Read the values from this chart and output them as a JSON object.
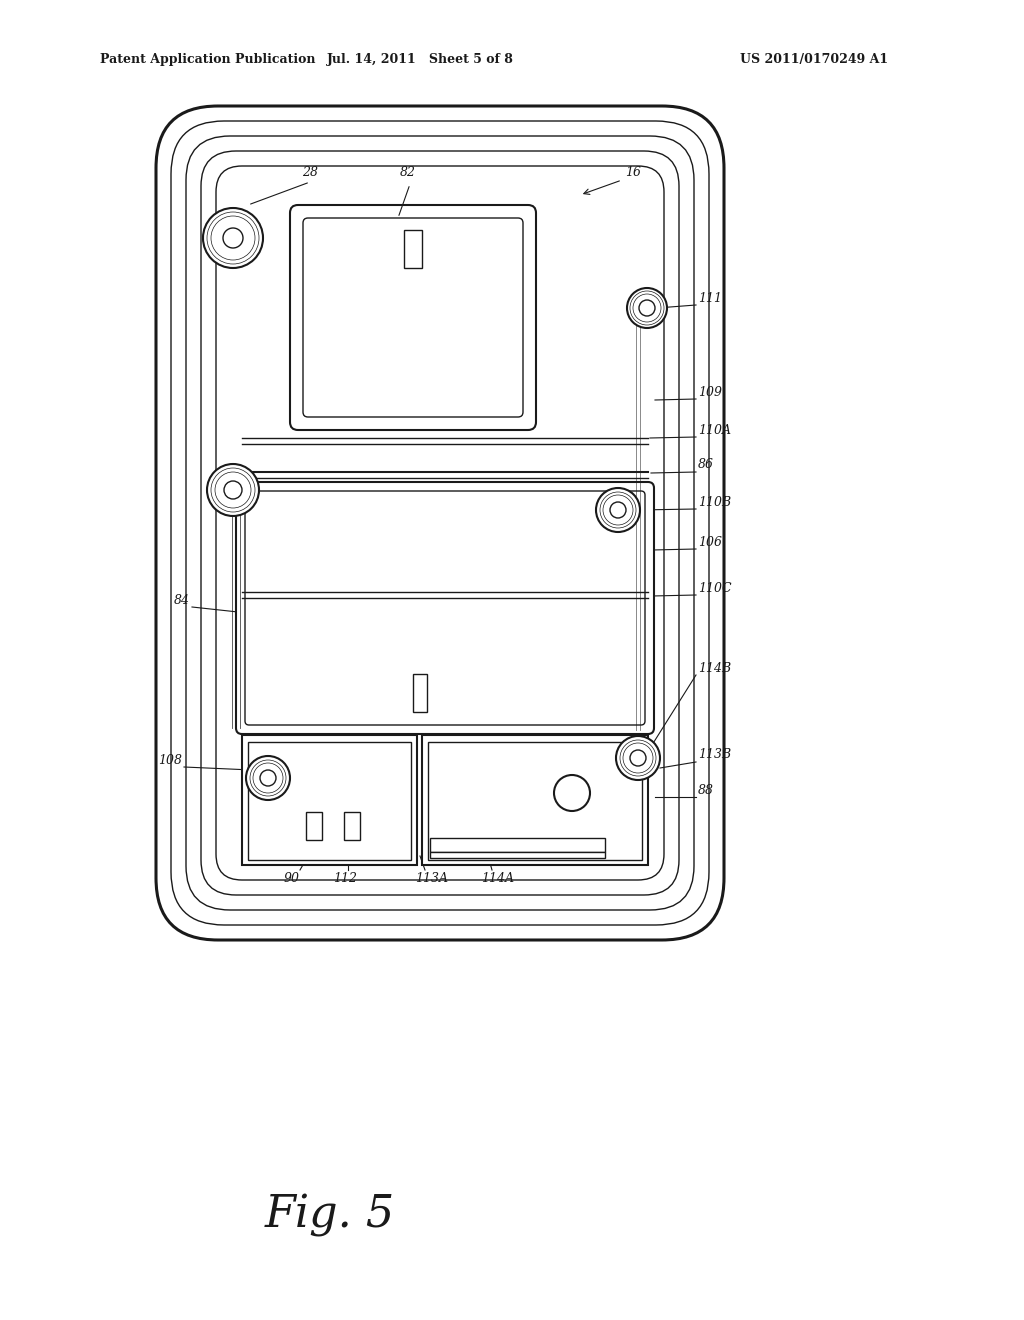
{
  "bg_color": "#ffffff",
  "line_color": "#1a1a1a",
  "header_left": "Patent Application Publication",
  "header_mid": "Jul. 14, 2011   Sheet 5 of 8",
  "header_right": "US 2011/0170249 A1",
  "fig_label": "Fig. 5"
}
